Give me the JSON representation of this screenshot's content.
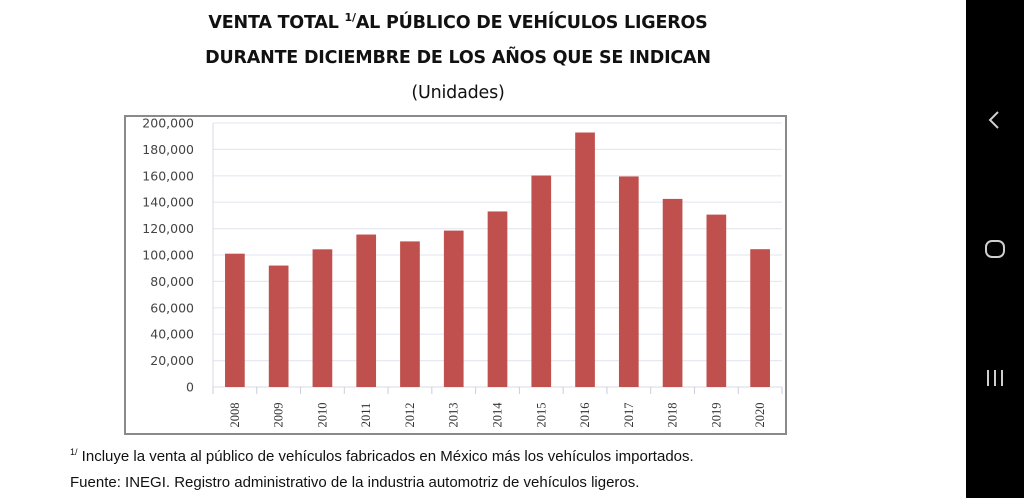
{
  "chart_data": {
    "type": "bar",
    "title": "VENTA TOTAL 1/ AL PÚBLICO DE VEHÍCULOS LIGEROS DURANTE DICIEMBRE DE LOS AÑOS QUE SE INDICAN",
    "title_parts": {
      "line1_pre": "VENTA TOTAL ",
      "line1_sup": "1/",
      "line1_post": "AL PÚBLICO DE VEHÍCULOS LIGEROS",
      "line2": "DURANTE DICIEMBRE DE LOS AÑOS QUE SE INDICAN",
      "subtitle": "(Unidades)"
    },
    "categories": [
      "2008",
      "2009",
      "2010",
      "2011",
      "2012",
      "2013",
      "2014",
      "2015",
      "2016",
      "2017",
      "2018",
      "2019",
      "2020"
    ],
    "values": [
      101000,
      92000,
      104300,
      115500,
      110300,
      118500,
      133000,
      160200,
      192800,
      159500,
      142500,
      130600,
      104400
    ],
    "ylim": [
      0,
      200000
    ],
    "yticks": [
      0,
      20000,
      40000,
      60000,
      80000,
      100000,
      120000,
      140000,
      160000,
      180000,
      200000
    ],
    "ytick_labels": [
      "0",
      "20,000",
      "40,000",
      "60,000",
      "80,000",
      "100,000",
      "120,000",
      "140,000",
      "160,000",
      "180,000",
      "200,000"
    ],
    "xlabel": "",
    "ylabel": "",
    "grid": true,
    "legend": "none",
    "bar_color": "#c0504d",
    "grid_color": "#e6e9f2"
  },
  "footnotes": {
    "note1_sup": "1/",
    "note1_text": " Incluye la venta al público de vehículos fabricados en México más los vehículos importados.",
    "note2_text": "Fuente: INEGI. Registro administrativo de la industria automotriz de vehículos ligeros."
  },
  "navbar": {
    "back": "back-icon",
    "home": "home-icon",
    "recents": "recents-icon"
  }
}
